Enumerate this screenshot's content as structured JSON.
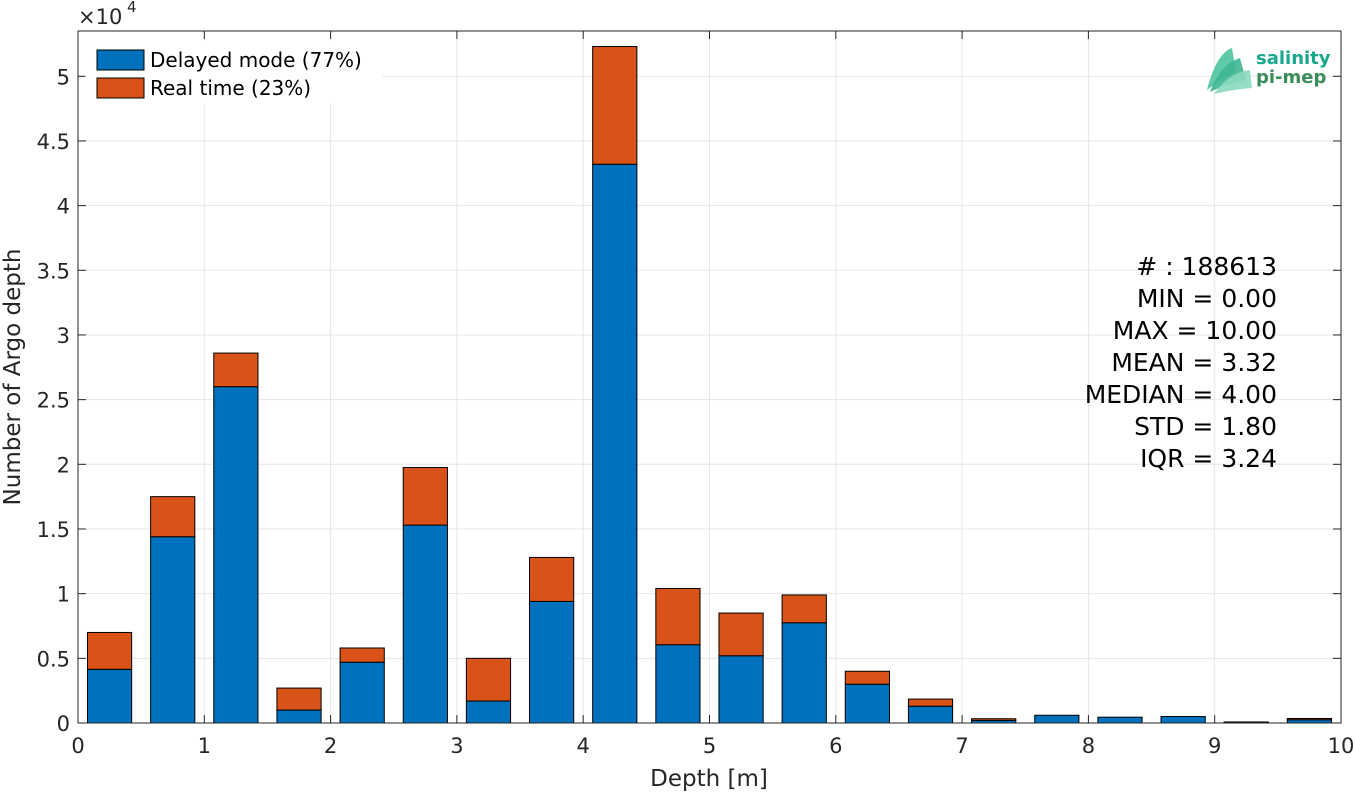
{
  "chart_data": {
    "type": "bar",
    "stacked": true,
    "xlabel": "Depth [m]",
    "ylabel": "Number of Argo depth",
    "xlim": [
      0,
      10
    ],
    "ylim": [
      0,
      53500
    ],
    "y_exponent_label": "×10",
    "y_exponent_power": "4",
    "x_ticks": [
      0,
      1,
      2,
      3,
      4,
      5,
      6,
      7,
      8,
      9,
      10
    ],
    "x_tick_labels": [
      "0",
      "1",
      "2",
      "3",
      "4",
      "5",
      "6",
      "7",
      "8",
      "9",
      "10"
    ],
    "y_ticks": [
      0,
      5000,
      10000,
      15000,
      20000,
      25000,
      30000,
      35000,
      40000,
      45000,
      50000
    ],
    "y_tick_labels": [
      "0",
      "0.5",
      "1",
      "1.5",
      "2",
      "2.5",
      "3",
      "3.5",
      "4",
      "4.5",
      "5"
    ],
    "grid": true,
    "legend_position": "top-left",
    "bin_width": 0.5,
    "bin_centers": [
      0.25,
      0.75,
      1.25,
      1.75,
      2.25,
      2.75,
      3.25,
      3.75,
      4.25,
      4.75,
      5.25,
      5.75,
      6.25,
      6.75,
      7.25,
      7.75,
      8.25,
      8.75,
      9.25,
      9.75
    ],
    "series": [
      {
        "name": "Delayed mode (77%)",
        "color": "#0072BD",
        "values": [
          4150,
          14400,
          26000,
          1000,
          4700,
          15300,
          1700,
          9400,
          43200,
          6050,
          5200,
          7750,
          3000,
          1300,
          200,
          600,
          450,
          500,
          50,
          250
        ]
      },
      {
        "name": "Real time (23%)",
        "color": "#D95319",
        "values": [
          2850,
          3100,
          2600,
          1700,
          1100,
          4450,
          3300,
          3400,
          9100,
          4350,
          3300,
          2150,
          1000,
          550,
          130,
          0,
          0,
          0,
          30,
          100
        ]
      }
    ],
    "stats": [
      "# : 188613",
      "MIN = 0.00",
      "MAX =  10.00",
      "MEAN = 3.32",
      "MEDIAN = 4.00",
      "STD = 1.80",
      "IQR = 3.24"
    ]
  },
  "logo": {
    "line1": "salinity",
    "line2": "pi-mep",
    "color1": "#1aa88c",
    "color2": "#3a8c5a"
  }
}
